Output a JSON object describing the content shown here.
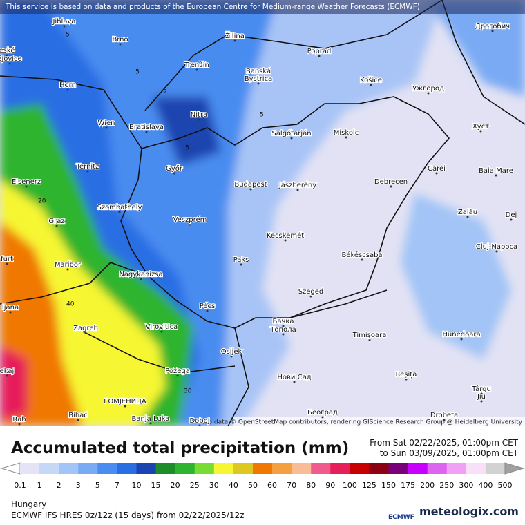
{
  "header": {
    "notice": "This service is based on data and products of the European Centre for Medium-range Weather Forecasts (ECMWF)"
  },
  "map": {
    "cities": [
      "Jihlava",
      "Brno",
      "Žilina",
      "Poprad",
      "Дрогобич",
      "eské",
      "ějovice",
      "Trenčín",
      "Banská",
      "Bystrica",
      "Horn",
      "Košice",
      "Ужгород",
      "Nitra",
      "Wien",
      "Bratislava",
      "Salgótarján",
      "Miskolc",
      "Хуст",
      "Ternitz",
      "Győr",
      "Budapest",
      "Jászberény",
      "Debrecen",
      "Carei",
      "Baia Mare",
      "Eisenerz",
      "Szombathely",
      "Veszprém",
      "Graz",
      "Zalău",
      "Dej",
      "Kecskemét",
      "Cluj-Napoca",
      "furt",
      "Paks",
      "Békéscsaba",
      "Maribor",
      "Nagykanizsa",
      "Szeged",
      "ljana",
      "Pécs",
      "Zagreb",
      "Virovitica",
      "Бачка",
      "Топола",
      "Timișoara",
      "Hunedoara",
      "Osijek",
      "Požega",
      "Нови Сад",
      "Reșița",
      "Târgu",
      "Jiu",
      "ГОМЈЕНИЦА",
      "Banja Luka",
      "Bihać",
      "Doboj",
      "Rab",
      "Београд",
      "Drobeta",
      "ekaj"
    ],
    "contour_labels": [
      "5",
      "5",
      "5",
      "5",
      "5",
      "20",
      "40",
      "30"
    ],
    "attribution": "Map data © OpenStreetMap contributors, rendering GIScience Research Group @ Heidelberg University"
  },
  "legend": {
    "title": "Accumulated total precipitation (mm)",
    "period_from": "From Sat 02/22/2025, 01:00pm CET",
    "period_to": "to Sun 03/09/2025, 01:00pm CET",
    "labels": [
      "0.1",
      "1",
      "2",
      "3",
      "5",
      "7",
      "10",
      "15",
      "20",
      "25",
      "30",
      "40",
      "50",
      "60",
      "70",
      "80",
      "90",
      "100",
      "125",
      "150",
      "175",
      "200",
      "250",
      "300",
      "400",
      "500"
    ],
    "colors": [
      "#ffffff",
      "#e4e4f6",
      "#c6d8f6",
      "#a2c4f6",
      "#7aaaf4",
      "#4a8cf0",
      "#2a6ee4",
      "#1a44b0",
      "#1e8c28",
      "#2eb42e",
      "#78dc32",
      "#f6f632",
      "#dcc81e",
      "#f07800",
      "#f5a040",
      "#f8bc96",
      "#f05a8c",
      "#e61e5a",
      "#c80000",
      "#8c0014",
      "#780078",
      "#c800ff",
      "#dc64f0",
      "#f0a0f5",
      "#f8e0f8",
      "#d2d2d2",
      "#a0a0a0"
    ]
  },
  "footer": {
    "region": "Hungary",
    "model": "ECMWF IFS HRES 0z/12z (15 days) from 02/22/2025/12z",
    "ecmwf_logo": "ECMWF",
    "brand": "meteologix.com"
  }
}
